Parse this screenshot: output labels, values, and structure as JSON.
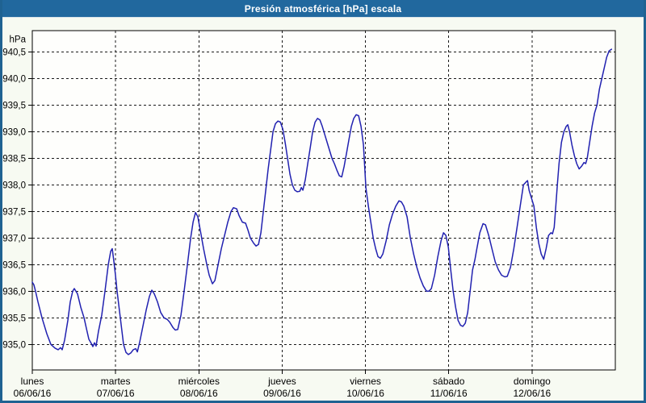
{
  "window": {
    "title": "Presión atmosférica [hPa] escala"
  },
  "colors": {
    "titlebar_bg": "#21689e",
    "frame_border": "#1f6292",
    "panel_bg": "#f7faf2",
    "plot_bg": "#fefefc",
    "grid_color": "#1a1a1a",
    "axis_color": "#000000",
    "line_color": "#2121b0",
    "title_text": "#ffffff",
    "label_text": "#000000"
  },
  "chart_data": {
    "type": "line",
    "title": "Presión atmosférica [hPa] escala",
    "grid": "dashed",
    "legend": "none",
    "y_axis": {
      "label": "hPa",
      "tick_min": 935.0,
      "tick_max": 940.5,
      "tick_step": 0.5,
      "range": [
        934.52,
        940.9
      ],
      "decimal_separator": ",",
      "tick_labels": [
        "935,0",
        "935,5",
        "936,0",
        "936,5",
        "937,0",
        "937,5",
        "938,0",
        "938,5",
        "939,0",
        "939,5",
        "940,0",
        "940,5"
      ]
    },
    "x_axis": {
      "range_days": [
        0,
        7
      ],
      "days": [
        {
          "name": "lunes",
          "date": "06/06/16"
        },
        {
          "name": "martes",
          "date": "07/06/16"
        },
        {
          "name": "miércoles",
          "date": "08/06/16"
        },
        {
          "name": "jueves",
          "date": "09/06/16"
        },
        {
          "name": "viernes",
          "date": "10/06/16"
        },
        {
          "name": "sábado",
          "date": "11/06/16"
        },
        {
          "name": "domingo",
          "date": "12/06/16"
        }
      ]
    },
    "series": [
      {
        "name": "Presión atmosférica [hPa]",
        "color": "#2121b0",
        "points": [
          [
            0,
            936.17
          ],
          [
            0.019,
            936.12
          ],
          [
            0.039,
            936.0
          ],
          [
            0.068,
            935.8
          ],
          [
            0.116,
            935.5
          ],
          [
            0.175,
            935.2
          ],
          [
            0.223,
            935.0
          ],
          [
            0.272,
            934.93
          ],
          [
            0.31,
            934.9
          ],
          [
            0.339,
            934.94
          ],
          [
            0.359,
            934.9
          ],
          [
            0.388,
            935.08
          ],
          [
            0.427,
            935.45
          ],
          [
            0.456,
            935.8
          ],
          [
            0.485,
            936.0
          ],
          [
            0.504,
            936.05
          ],
          [
            0.543,
            935.95
          ],
          [
            0.582,
            935.7
          ],
          [
            0.621,
            935.5
          ],
          [
            0.65,
            935.3
          ],
          [
            0.679,
            935.1
          ],
          [
            0.708,
            935.02
          ],
          [
            0.727,
            934.96
          ],
          [
            0.747,
            935.03
          ],
          [
            0.766,
            934.97
          ],
          [
            0.795,
            935.25
          ],
          [
            0.834,
            935.55
          ],
          [
            0.873,
            936.0
          ],
          [
            0.912,
            936.5
          ],
          [
            0.941,
            936.75
          ],
          [
            0.96,
            936.8
          ],
          [
            0.98,
            936.55
          ],
          [
            0.999,
            936.3
          ],
          [
            1.018,
            936.0
          ],
          [
            1.057,
            935.5
          ],
          [
            1.096,
            935.0
          ],
          [
            1.125,
            934.85
          ],
          [
            1.154,
            934.81
          ],
          [
            1.183,
            934.84
          ],
          [
            1.212,
            934.9
          ],
          [
            1.242,
            934.92
          ],
          [
            1.261,
            934.86
          ],
          [
            1.29,
            935.05
          ],
          [
            1.329,
            935.35
          ],
          [
            1.368,
            935.65
          ],
          [
            1.406,
            935.9
          ],
          [
            1.435,
            936.02
          ],
          [
            1.465,
            935.95
          ],
          [
            1.503,
            935.8
          ],
          [
            1.542,
            935.6
          ],
          [
            1.581,
            935.5
          ],
          [
            1.62,
            935.47
          ],
          [
            1.649,
            935.42
          ],
          [
            1.688,
            935.32
          ],
          [
            1.717,
            935.27
          ],
          [
            1.746,
            935.28
          ],
          [
            1.785,
            935.55
          ],
          [
            1.823,
            936.0
          ],
          [
            1.862,
            936.5
          ],
          [
            1.901,
            937.0
          ],
          [
            1.93,
            937.3
          ],
          [
            1.959,
            937.48
          ],
          [
            1.988,
            937.4
          ],
          [
            2.017,
            937.15
          ],
          [
            2.056,
            936.8
          ],
          [
            2.095,
            936.5
          ],
          [
            2.124,
            936.3
          ],
          [
            2.163,
            936.14
          ],
          [
            2.192,
            936.2
          ],
          [
            2.231,
            936.5
          ],
          [
            2.27,
            936.8
          ],
          [
            2.308,
            937.05
          ],
          [
            2.347,
            937.3
          ],
          [
            2.386,
            937.5
          ],
          [
            2.415,
            937.57
          ],
          [
            2.454,
            937.55
          ],
          [
            2.483,
            937.42
          ],
          [
            2.522,
            937.3
          ],
          [
            2.561,
            937.28
          ],
          [
            2.59,
            937.15
          ],
          [
            2.619,
            937.0
          ],
          [
            2.658,
            936.9
          ],
          [
            2.687,
            936.85
          ],
          [
            2.716,
            936.88
          ],
          [
            2.745,
            937.1
          ],
          [
            2.774,
            937.5
          ],
          [
            2.803,
            937.9
          ],
          [
            2.832,
            938.3
          ],
          [
            2.861,
            938.65
          ],
          [
            2.89,
            939.0
          ],
          [
            2.919,
            939.15
          ],
          [
            2.949,
            939.2
          ],
          [
            2.978,
            939.18
          ],
          [
            3.007,
            939.05
          ],
          [
            3.036,
            938.8
          ],
          [
            3.065,
            938.5
          ],
          [
            3.094,
            938.2
          ],
          [
            3.123,
            938.0
          ],
          [
            3.152,
            937.9
          ],
          [
            3.181,
            937.87
          ],
          [
            3.211,
            937.88
          ],
          [
            3.23,
            937.95
          ],
          [
            3.249,
            937.9
          ],
          [
            3.278,
            938.1
          ],
          [
            3.307,
            938.4
          ],
          [
            3.337,
            938.7
          ],
          [
            3.366,
            939.0
          ],
          [
            3.395,
            939.18
          ],
          [
            3.424,
            939.25
          ],
          [
            3.453,
            939.22
          ],
          [
            3.482,
            939.1
          ],
          [
            3.511,
            938.95
          ],
          [
            3.54,
            938.8
          ],
          [
            3.569,
            938.65
          ],
          [
            3.598,
            938.5
          ],
          [
            3.627,
            938.4
          ],
          [
            3.656,
            938.28
          ],
          [
            3.686,
            938.17
          ],
          [
            3.715,
            938.15
          ],
          [
            3.744,
            938.35
          ],
          [
            3.773,
            938.6
          ],
          [
            3.802,
            938.85
          ],
          [
            3.831,
            939.1
          ],
          [
            3.86,
            939.25
          ],
          [
            3.889,
            939.32
          ],
          [
            3.918,
            939.3
          ],
          [
            3.947,
            939.1
          ],
          [
            3.976,
            938.75
          ],
          [
            4.005,
            937.95
          ],
          [
            4.035,
            937.6
          ],
          [
            4.064,
            937.3
          ],
          [
            4.093,
            937.0
          ],
          [
            4.122,
            936.8
          ],
          [
            4.151,
            936.65
          ],
          [
            4.18,
            936.62
          ],
          [
            4.209,
            936.7
          ],
          [
            4.248,
            936.95
          ],
          [
            4.287,
            937.25
          ],
          [
            4.325,
            937.45
          ],
          [
            4.364,
            937.6
          ],
          [
            4.403,
            937.7
          ],
          [
            4.432,
            937.68
          ],
          [
            4.461,
            937.6
          ],
          [
            4.5,
            937.4
          ],
          [
            4.539,
            937.0
          ],
          [
            4.578,
            936.7
          ],
          [
            4.617,
            936.45
          ],
          [
            4.656,
            936.25
          ],
          [
            4.694,
            936.1
          ],
          [
            4.733,
            936.0
          ],
          [
            4.762,
            936.0
          ],
          [
            4.791,
            936.05
          ],
          [
            4.83,
            936.3
          ],
          [
            4.869,
            936.65
          ],
          [
            4.908,
            936.95
          ],
          [
            4.937,
            937.1
          ],
          [
            4.966,
            937.05
          ],
          [
            4.995,
            936.83
          ],
          [
            5.024,
            936.4
          ],
          [
            5.053,
            936.0
          ],
          [
            5.082,
            935.7
          ],
          [
            5.112,
            935.45
          ],
          [
            5.141,
            935.36
          ],
          [
            5.17,
            935.34
          ],
          [
            5.199,
            935.4
          ],
          [
            5.228,
            935.6
          ],
          [
            5.257,
            936.0
          ],
          [
            5.286,
            936.4
          ],
          [
            5.315,
            936.6
          ],
          [
            5.335,
            936.78
          ],
          [
            5.373,
            937.1
          ],
          [
            5.412,
            937.27
          ],
          [
            5.441,
            937.25
          ],
          [
            5.48,
            937.05
          ],
          [
            5.519,
            936.8
          ],
          [
            5.558,
            936.55
          ],
          [
            5.597,
            936.4
          ],
          [
            5.635,
            936.3
          ],
          [
            5.674,
            936.27
          ],
          [
            5.703,
            936.28
          ],
          [
            5.742,
            936.45
          ],
          [
            5.781,
            936.8
          ],
          [
            5.82,
            937.2
          ],
          [
            5.858,
            937.6
          ],
          [
            5.897,
            938.0
          ],
          [
            5.926,
            938.05
          ],
          [
            5.946,
            938.08
          ],
          [
            5.965,
            937.9
          ],
          [
            5.994,
            937.75
          ],
          [
            6.023,
            937.6
          ],
          [
            6.052,
            937.2
          ],
          [
            6.081,
            936.9
          ],
          [
            6.11,
            936.7
          ],
          [
            6.14,
            936.6
          ],
          [
            6.169,
            936.8
          ],
          [
            6.198,
            937.05
          ],
          [
            6.227,
            937.1
          ],
          [
            6.246,
            937.08
          ],
          [
            6.266,
            937.2
          ],
          [
            6.285,
            937.6
          ],
          [
            6.304,
            938.0
          ],
          [
            6.324,
            938.4
          ],
          [
            6.353,
            938.8
          ],
          [
            6.382,
            939.0
          ],
          [
            6.411,
            939.1
          ],
          [
            6.43,
            939.13
          ],
          [
            6.45,
            939.0
          ],
          [
            6.479,
            938.75
          ],
          [
            6.508,
            938.55
          ],
          [
            6.537,
            938.4
          ],
          [
            6.566,
            938.3
          ],
          [
            6.595,
            938.35
          ],
          [
            6.624,
            938.42
          ],
          [
            6.644,
            938.4
          ],
          [
            6.663,
            938.5
          ],
          [
            6.692,
            938.8
          ],
          [
            6.721,
            939.1
          ],
          [
            6.751,
            939.35
          ],
          [
            6.78,
            939.5
          ],
          [
            6.809,
            939.8
          ],
          [
            6.838,
            940.0
          ],
          [
            6.867,
            940.2
          ],
          [
            6.896,
            940.4
          ],
          [
            6.925,
            940.52
          ],
          [
            6.954,
            940.55
          ]
        ]
      }
    ]
  }
}
